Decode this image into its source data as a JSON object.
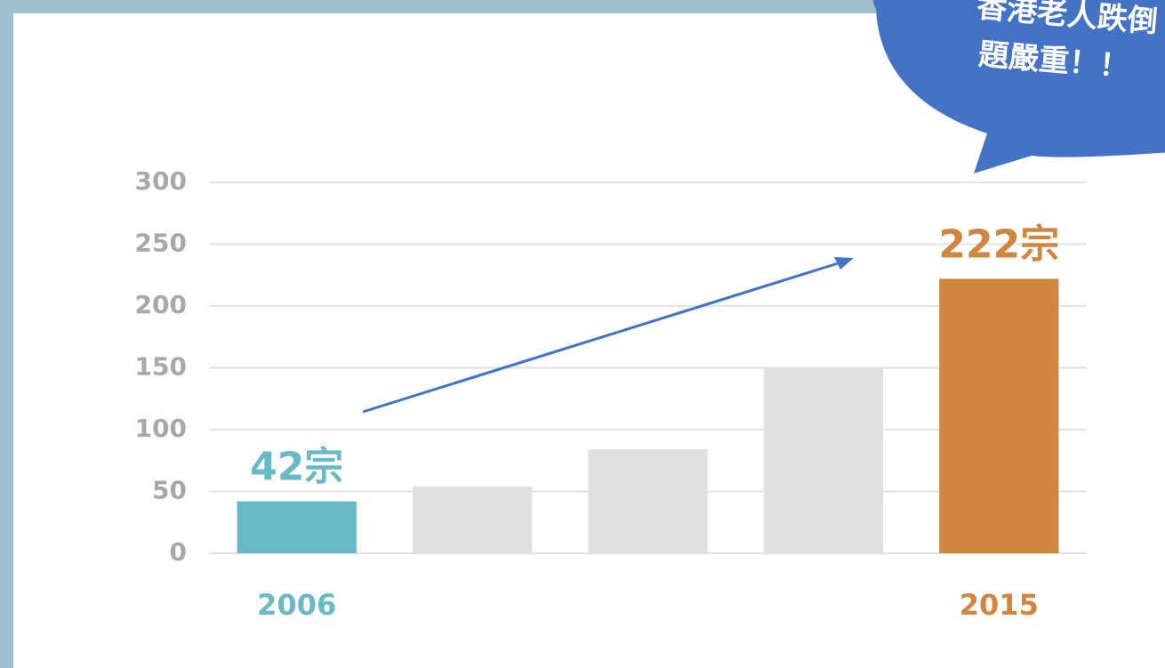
{
  "chart_data": {
    "type": "bar",
    "annotation": [
      "香港老人跌倒",
      "題嚴重！！"
    ],
    "categories": [
      "2006",
      null,
      null,
      null,
      "2015"
    ],
    "values": [
      42,
      54,
      84,
      150,
      222
    ],
    "value_labels": [
      "42宗",
      null,
      null,
      null,
      "222宗"
    ],
    "colors": [
      "#68bac6",
      "#e0e0e0",
      "#e0e0e0",
      "#e0e0e0",
      "#d0863e"
    ],
    "ylim": [
      0,
      300
    ],
    "yticks": [
      0,
      50,
      100,
      150,
      200,
      250,
      300
    ],
    "grid": true
  }
}
